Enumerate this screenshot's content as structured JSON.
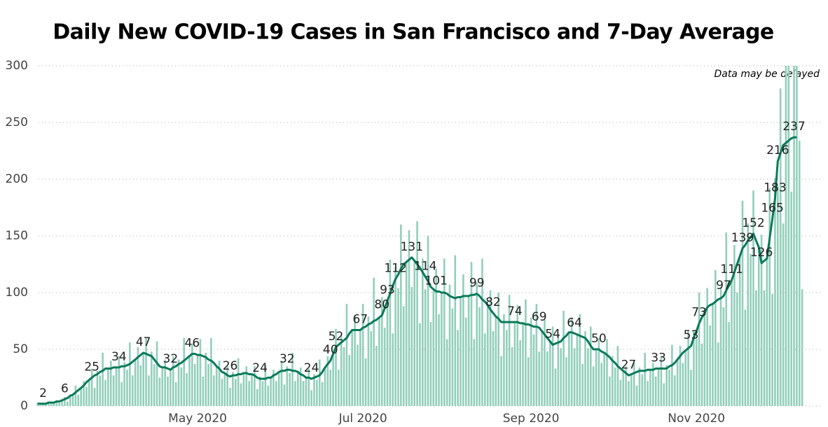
{
  "chart_data": {
    "type": "combo",
    "title": "Daily New COVID-19 Cases in San Francisco and 7-Day Average",
    "annotation": "Data may be delayed",
    "x": [
      2,
      3,
      4,
      5,
      6,
      7,
      8,
      9,
      10,
      11,
      12,
      13,
      14,
      15,
      16,
      17,
      18,
      19,
      20,
      21,
      22,
      23,
      24,
      25,
      26,
      27,
      28,
      29,
      30,
      31,
      32,
      33,
      34,
      35,
      36,
      37,
      38,
      39,
      40,
      41,
      42,
      43,
      44,
      45,
      46,
      47,
      48,
      49,
      50,
      51,
      52,
      53,
      54,
      55,
      56,
      57,
      58,
      59,
      60,
      61,
      62,
      63,
      64,
      65,
      66,
      67,
      68,
      69,
      70,
      71,
      72,
      73,
      74,
      75,
      76,
      77,
      78,
      79,
      80,
      81,
      82,
      83,
      84,
      85,
      86,
      87,
      88,
      89,
      90,
      91,
      92,
      93,
      94,
      95,
      96,
      97,
      98,
      99,
      100,
      101,
      102,
      103,
      104,
      105,
      106,
      107,
      108,
      109,
      110,
      111,
      112,
      113,
      114,
      115,
      116,
      117,
      118,
      119,
      120,
      121,
      122,
      123,
      124,
      125,
      126,
      127,
      128,
      129,
      130,
      131,
      132,
      133,
      134,
      135,
      136,
      137,
      138,
      139,
      140,
      141,
      142,
      143,
      144,
      145,
      146,
      147,
      148,
      149,
      150,
      151,
      152,
      153,
      154,
      155,
      156,
      157,
      158,
      159,
      160,
      161,
      162,
      163,
      164,
      165,
      166,
      167,
      168,
      169,
      170,
      171,
      172,
      173,
      174,
      175,
      176,
      177,
      178,
      179,
      180,
      181,
      182,
      183,
      184,
      185,
      186,
      187,
      188,
      189,
      190,
      191,
      192,
      193,
      194,
      195,
      196,
      197,
      198,
      199,
      200,
      201,
      202,
      203,
      204,
      205,
      206,
      207,
      208,
      209,
      210,
      211,
      212,
      213,
      214,
      215,
      216,
      217,
      218,
      219,
      220,
      221,
      222,
      223,
      224,
      225,
      226,
      227,
      228,
      229,
      230,
      231,
      232,
      233,
      234,
      235,
      236,
      237,
      238,
      239,
      240,
      241,
      242,
      243,
      244,
      245,
      246,
      247,
      248,
      249,
      250,
      251,
      252,
      253,
      254,
      255,
      256,
      257,
      258,
      259,
      260,
      261,
      262,
      263,
      264,
      265,
      266,
      267,
      268,
      269,
      270,
      271,
      272,
      273,
      274,
      275,
      276,
      277,
      278,
      279,
      280,
      281,
      282,
      283,
      284
    ],
    "xlim": [
      0,
      285
    ],
    "xticks": [
      {
        "value": 61,
        "label": "May 2020"
      },
      {
        "value": 122,
        "label": "Jul 2020"
      },
      {
        "value": 184,
        "label": "Sep 2020"
      },
      {
        "value": 245,
        "label": "Nov 2020"
      }
    ],
    "ylim": [
      0,
      300
    ],
    "yticks": [
      0,
      50,
      100,
      150,
      200,
      250,
      300
    ],
    "grid": true,
    "series": [
      {
        "type": "bar",
        "color": "#93cfbb",
        "values": [
          3,
          1,
          2,
          2,
          4,
          2,
          3,
          5,
          3,
          5,
          8,
          4,
          10,
          9,
          18,
          10,
          16,
          22,
          17,
          23,
          33,
          16,
          31,
          27,
          47,
          23,
          33,
          40,
          27,
          34,
          44,
          21,
          39,
          32,
          56,
          27,
          41,
          52,
          36,
          47,
          60,
          27,
          48,
          37,
          57,
          25,
          34,
          41,
          26,
          32,
          44,
          21,
          41,
          34,
          60,
          29,
          44,
          55,
          37,
          45,
          59,
          26,
          47,
          37,
          60,
          27,
          35,
          40,
          24,
          29,
          35,
          16,
          30,
          24,
          42,
          20,
          29,
          35,
          22,
          28,
          35,
          15,
          26,
          22,
          36,
          18,
          25,
          32,
          22,
          30,
          40,
          19,
          35,
          29,
          47,
          22,
          30,
          34,
          22,
          25,
          33,
          14,
          28,
          23,
          41,
          21,
          34,
          44,
          32,
          46,
          68,
          32,
          62,
          52,
          90,
          45,
          67,
          80,
          54,
          67,
          90,
          42,
          79,
          66,
          113,
          53,
          78,
          96,
          69,
          93,
          129,
          64,
          123,
          104,
          160,
          88,
          127,
          155,
          105,
          128,
          163,
          73,
          130,
          103,
          150,
          74,
          103,
          121,
          81,
          100,
          130,
          59,
          107,
          86,
          133,
          67,
          96,
          116,
          78,
          97,
          127,
          59,
          109,
          87,
          130,
          64,
          89,
          102,
          66,
          79,
          100,
          44,
          81,
          67,
          98,
          52,
          74,
          89,
          58,
          73,
          94,
          43,
          78,
          63,
          90,
          48,
          66,
          76,
          48,
          57,
          70,
          33,
          62,
          51,
          84,
          43,
          65,
          78,
          51,
          63,
          81,
          37,
          66,
          51,
          70,
          35,
          50,
          60,
          38,
          47,
          59,
          26,
          44,
          34,
          53,
          23,
          31,
          35,
          22,
          28,
          38,
          18,
          34,
          28,
          47,
          22,
          32,
          38,
          26,
          33,
          43,
          20,
          36,
          32,
          54,
          27,
          41,
          53,
          38,
          49,
          66,
          32,
          66,
          59,
          100,
          55,
          82,
          104,
          71,
          90,
          120,
          56,
          105,
          87,
          153,
          74,
          111,
          142,
          100,
          132,
          181,
          85,
          161,
          134,
          190,
          102,
          140,
          151,
          102,
          130,
          192,
          99,
          201,
          194,
          280,
          161,
          300,
          300,
          189,
          300,
          300,
          234,
          103
        ]
      },
      {
        "type": "line",
        "color": "#0a7a58",
        "values": [
          2,
          2,
          2,
          2,
          3,
          3,
          3,
          4,
          4,
          5,
          6,
          7,
          9,
          10,
          12,
          14,
          16,
          18,
          21,
          23,
          25,
          27,
          28,
          30,
          31,
          33,
          33,
          33,
          34,
          34,
          34,
          35,
          35,
          36,
          37,
          39,
          41,
          43,
          45,
          47,
          46,
          45,
          44,
          41,
          38,
          35,
          34,
          34,
          33,
          32,
          34,
          35,
          37,
          38,
          40,
          42,
          44,
          46,
          46,
          45,
          45,
          44,
          43,
          41,
          40,
          38,
          35,
          33,
          30,
          29,
          27,
          26,
          27,
          27,
          28,
          28,
          29,
          29,
          28,
          28,
          27,
          25,
          24,
          24,
          24,
          25,
          25,
          27,
          28,
          30,
          31,
          31,
          32,
          32,
          31,
          31,
          30,
          28,
          27,
          25,
          25,
          24,
          25,
          26,
          27,
          30,
          34,
          37,
          40,
          46,
          52,
          54,
          56,
          58,
          60,
          64,
          67,
          67,
          67,
          67,
          69,
          70,
          72,
          73,
          75,
          76,
          78,
          80,
          86,
          93,
          99,
          106,
          112,
          116,
          121,
          125,
          127,
          129,
          131,
          128,
          125,
          122,
          118,
          114,
          110,
          105,
          103,
          101,
          101,
          100,
          100,
          99,
          97,
          96,
          95,
          96,
          96,
          97,
          97,
          97,
          98,
          98,
          99,
          97,
          94,
          92,
          89,
          85,
          82,
          79,
          77,
          74,
          74,
          74,
          74,
          74,
          74,
          74,
          73,
          73,
          72,
          72,
          71,
          70,
          70,
          69,
          66,
          63,
          60,
          57,
          54,
          55,
          56,
          57,
          60,
          62,
          65,
          65,
          64,
          63,
          62,
          61,
          60,
          57,
          53,
          50,
          50,
          50,
          48,
          47,
          45,
          43,
          40,
          38,
          35,
          33,
          31,
          29,
          27,
          28,
          29,
          30,
          31,
          31,
          31,
          32,
          32,
          32,
          33,
          33,
          33,
          33,
          33,
          35,
          36,
          38,
          41,
          44,
          47,
          49,
          51,
          53,
          60,
          66,
          73,
          78,
          82,
          87,
          89,
          90,
          92,
          94,
          95,
          97,
          102,
          106,
          111,
          118,
          125,
          132,
          139,
          142,
          146,
          149,
          152,
          146,
          140,
          126,
          128,
          130,
          148,
          165,
          183,
          216,
          223,
          230,
          232,
          234,
          236,
          237,
          237,
          null,
          null
        ],
        "value_labels": [
          null,
          null,
          "2",
          null,
          null,
          null,
          null,
          null,
          null,
          null,
          "6",
          null,
          null,
          null,
          null,
          null,
          null,
          null,
          null,
          null,
          "25",
          null,
          null,
          null,
          null,
          null,
          null,
          null,
          null,
          null,
          "34",
          null,
          null,
          null,
          null,
          null,
          null,
          null,
          null,
          "47",
          null,
          null,
          null,
          null,
          null,
          null,
          null,
          null,
          null,
          "32",
          null,
          null,
          null,
          null,
          null,
          null,
          null,
          "46",
          null,
          null,
          null,
          null,
          null,
          null,
          null,
          null,
          null,
          null,
          null,
          null,
          null,
          "26",
          null,
          null,
          null,
          null,
          null,
          null,
          null,
          null,
          null,
          null,
          "24",
          null,
          null,
          null,
          null,
          null,
          null,
          null,
          null,
          null,
          "32",
          null,
          null,
          null,
          null,
          null,
          null,
          null,
          null,
          "24",
          null,
          null,
          null,
          null,
          null,
          null,
          "40",
          null,
          "52",
          null,
          null,
          null,
          null,
          null,
          null,
          null,
          null,
          "67",
          null,
          null,
          null,
          null,
          null,
          null,
          null,
          "80",
          null,
          "93",
          null,
          null,
          "112",
          null,
          null,
          null,
          null,
          null,
          "131",
          null,
          null,
          null,
          null,
          "114",
          null,
          null,
          null,
          "101",
          null,
          null,
          null,
          null,
          null,
          null,
          null,
          null,
          null,
          null,
          null,
          null,
          null,
          null,
          "99",
          null,
          null,
          null,
          null,
          null,
          "82",
          null,
          null,
          null,
          null,
          null,
          null,
          null,
          "74",
          null,
          null,
          null,
          null,
          null,
          null,
          null,
          null,
          "69",
          null,
          null,
          null,
          null,
          "54",
          null,
          null,
          null,
          null,
          null,
          null,
          null,
          "64",
          null,
          null,
          null,
          null,
          null,
          null,
          null,
          null,
          "50",
          null,
          null,
          null,
          null,
          null,
          null,
          null,
          null,
          null,
          null,
          "27",
          null,
          null,
          null,
          null,
          null,
          null,
          null,
          null,
          null,
          null,
          "33",
          null,
          null,
          null,
          null,
          null,
          null,
          null,
          null,
          null,
          null,
          null,
          "53",
          null,
          null,
          "73",
          null,
          null,
          null,
          null,
          null,
          null,
          null,
          null,
          "97",
          null,
          null,
          "111",
          null,
          null,
          null,
          "139",
          null,
          null,
          null,
          "152",
          null,
          null,
          "126",
          null,
          null,
          null,
          "165",
          "183",
          "216",
          null,
          null,
          null,
          null,
          null,
          "237",
          null,
          null,
          null
        ]
      }
    ]
  }
}
